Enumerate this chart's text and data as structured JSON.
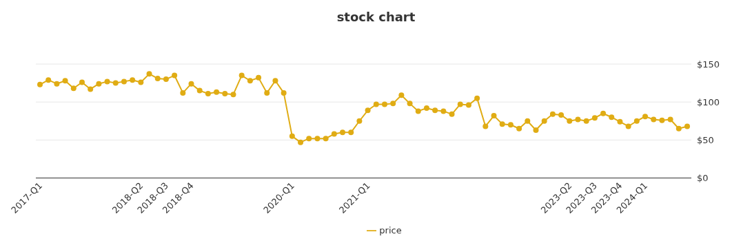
{
  "chart_data": {
    "type": "line",
    "title": "stock chart",
    "categories": [
      "2017-Q1",
      null,
      null,
      null,
      null,
      null,
      null,
      null,
      null,
      null,
      null,
      null,
      "2018-Q2",
      null,
      null,
      "2018-Q3",
      null,
      null,
      "2018-Q4",
      null,
      null,
      null,
      null,
      null,
      null,
      null,
      null,
      null,
      null,
      null,
      "2020-Q1",
      null,
      null,
      null,
      null,
      null,
      null,
      null,
      null,
      "2021-Q1",
      null,
      null,
      null,
      null,
      null,
      null,
      null,
      null,
      null,
      null,
      null,
      null,
      null,
      null,
      null,
      null,
      null,
      null,
      null,
      null,
      null,
      null,
      null,
      "2023-Q2",
      null,
      null,
      "2023-Q3",
      null,
      null,
      "2023-Q4",
      null,
      null,
      "2024-Q1",
      null,
      null,
      null,
      null,
      null
    ],
    "series": [
      {
        "name": "price",
        "color": "#e0ac14",
        "values": [
          123,
          129,
          124,
          128,
          118,
          126,
          117,
          124,
          127,
          125,
          127,
          129,
          126,
          137,
          131,
          130,
          135,
          112,
          124,
          115,
          111,
          113,
          111,
          110,
          135,
          128,
          132,
          112,
          128,
          112,
          55,
          47,
          52,
          52,
          52,
          58,
          60,
          60,
          75,
          89,
          97,
          97,
          98,
          109,
          98,
          88,
          92,
          89,
          88,
          84,
          97,
          96,
          105,
          68,
          82,
          71,
          70,
          65,
          75,
          63,
          75,
          84,
          83,
          75,
          77,
          75,
          79,
          85,
          80,
          74,
          68,
          75,
          81,
          77,
          76,
          77,
          65,
          68
        ]
      }
    ],
    "ylim": [
      0,
      150
    ],
    "yticks": [
      {
        "value": 0,
        "label": "$0"
      },
      {
        "value": 50,
        "label": "$50"
      },
      {
        "value": 100,
        "label": "$100"
      },
      {
        "value": 150,
        "label": "$150"
      }
    ],
    "grid": "y",
    "legend": "bottom",
    "marker": "circle",
    "line_style": "solid"
  }
}
